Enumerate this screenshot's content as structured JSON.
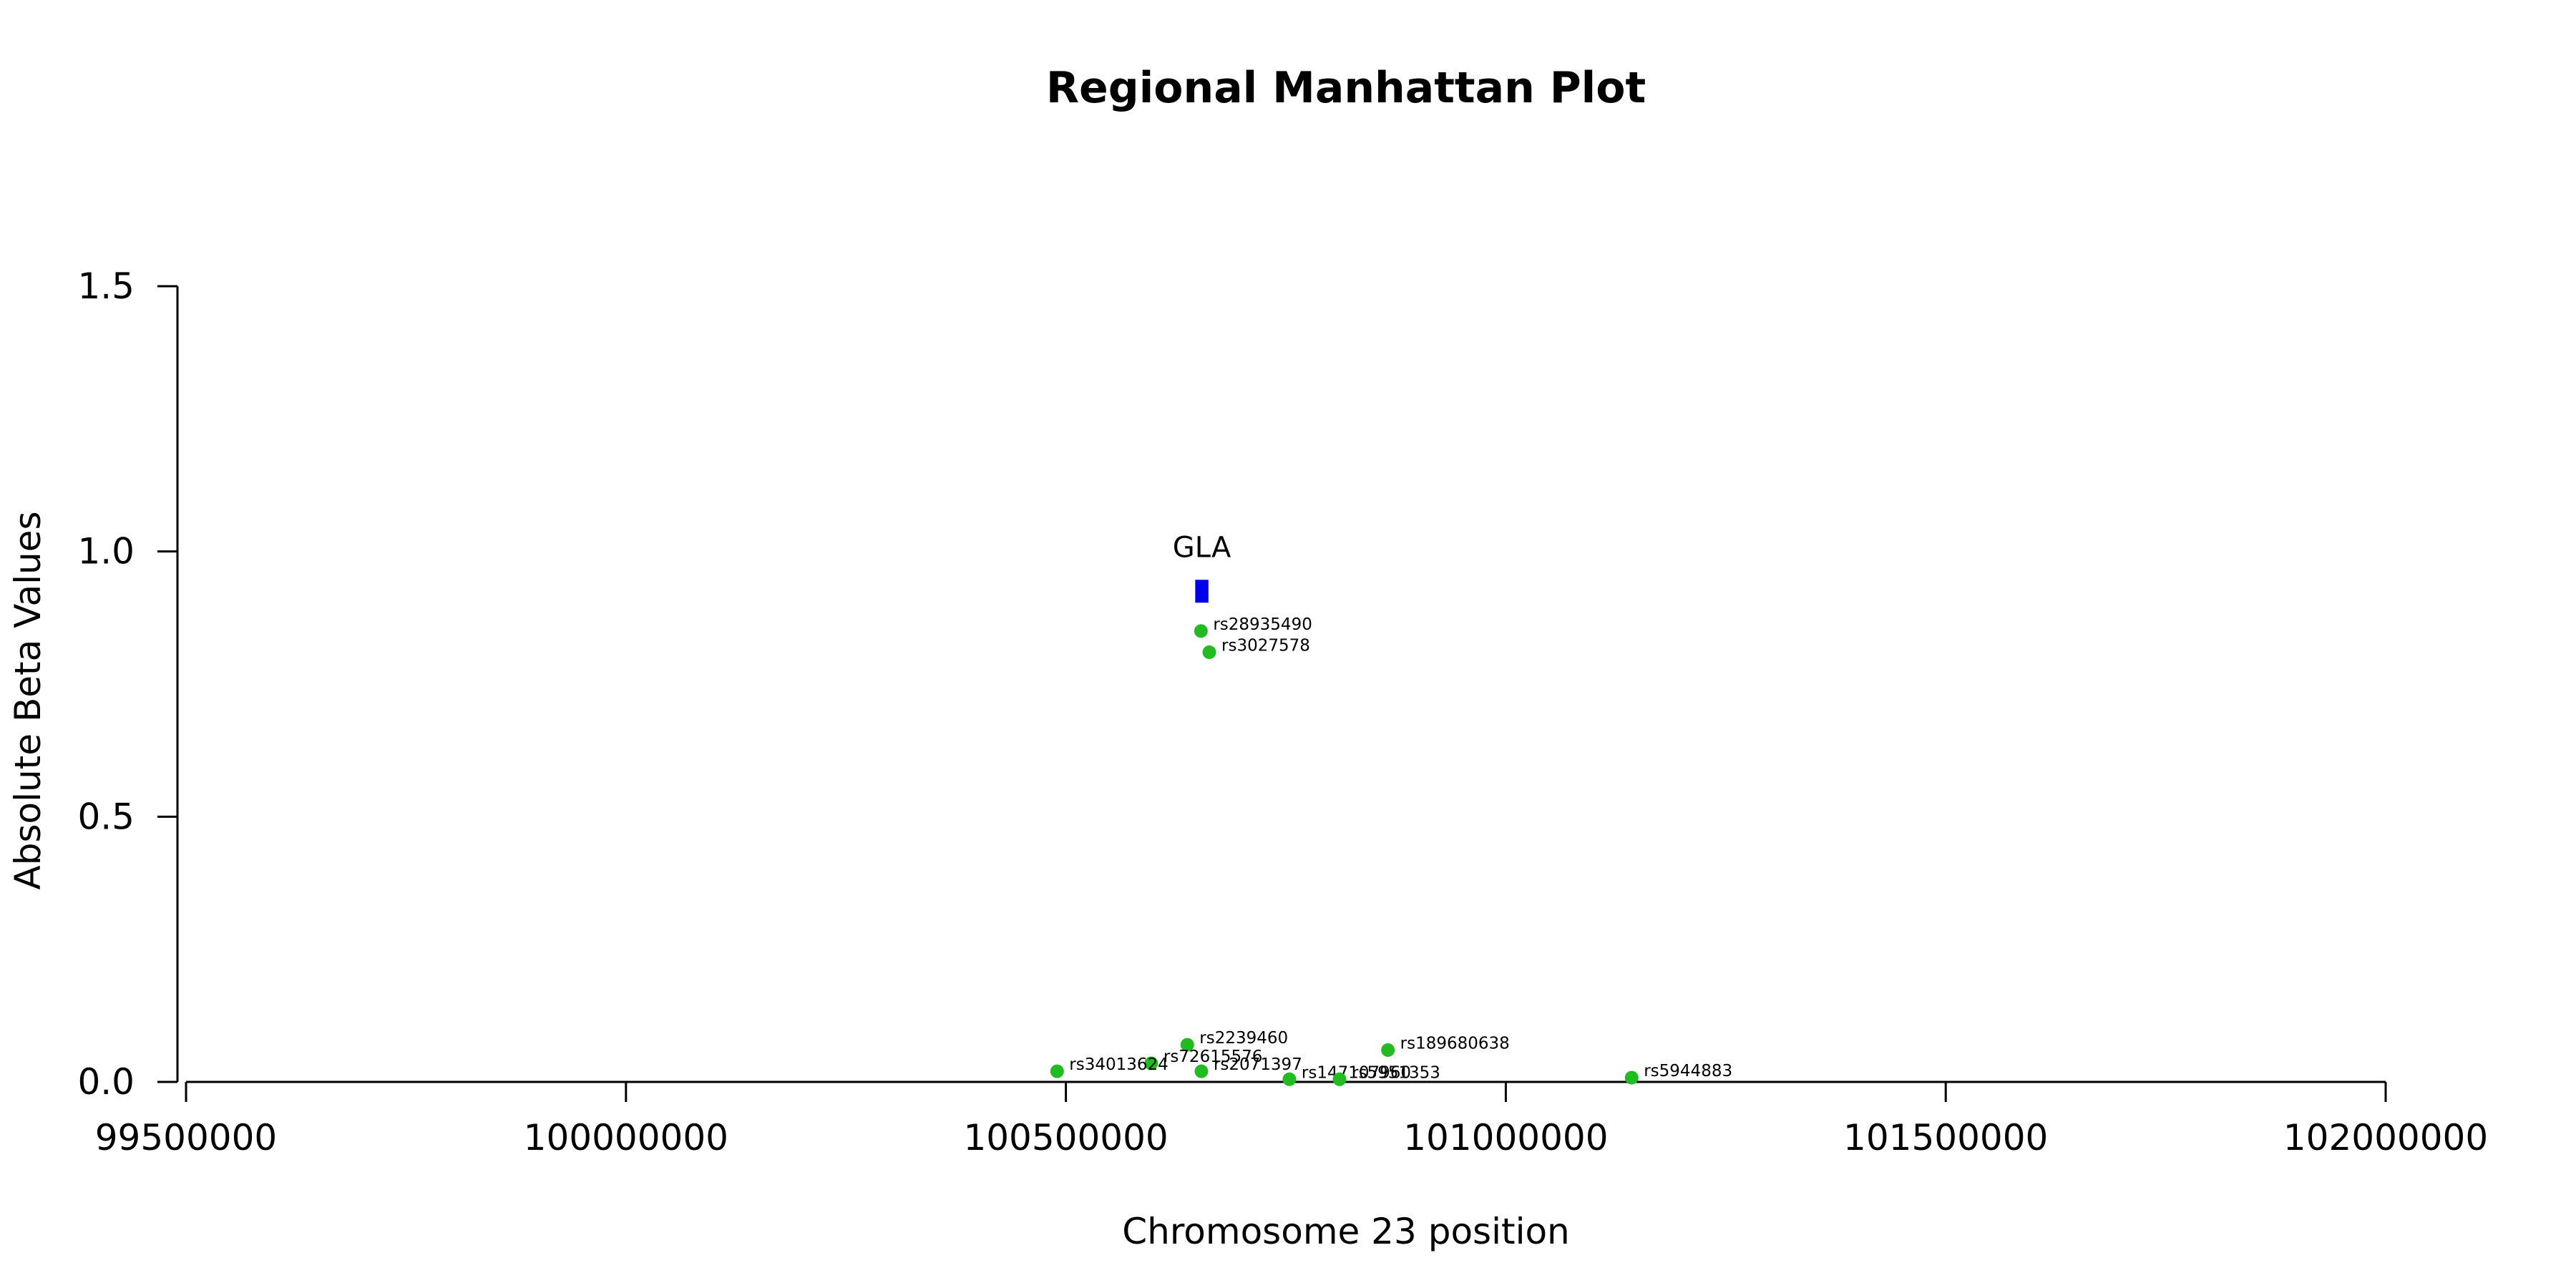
{
  "chart_data": {
    "type": "scatter",
    "title": "Regional Manhattan Plot",
    "xlabel": "Chromosome 23 position",
    "ylabel": "Absolute Beta Values",
    "xlim": [
      99500000,
      102000000
    ],
    "ylim": [
      0,
      1.5
    ],
    "x_ticks": [
      "99500000",
      "100000000",
      "100500000",
      "101000000",
      "101500000",
      "102000000"
    ],
    "y_ticks": [
      "0.0",
      "0.5",
      "1.0",
      "1.5"
    ],
    "grid": false,
    "point_color": "#22bb22",
    "points": [
      {
        "label": "rs28935490",
        "x": 100653500,
        "y": 0.85
      },
      {
        "label": "rs3027578",
        "x": 100663000,
        "y": 0.81
      },
      {
        "label": "rs2239460",
        "x": 100638000,
        "y": 0.07
      },
      {
        "label": "rs72615576",
        "x": 100597000,
        "y": 0.035
      },
      {
        "label": "rs34013624",
        "x": 100490000,
        "y": 0.02
      },
      {
        "label": "rs2071397",
        "x": 100654000,
        "y": 0.02
      },
      {
        "label": "rs147107960",
        "x": 100754000,
        "y": 0.005
      },
      {
        "label": "rs5951353",
        "x": 100811000,
        "y": 0.005
      },
      {
        "label": "rs189680638",
        "x": 100866000,
        "y": 0.06
      },
      {
        "label": "rs5944883",
        "x": 101143000,
        "y": 0.008
      }
    ],
    "genes": [
      {
        "name": "GLA",
        "start": 100647000,
        "end": 100662000,
        "y": 0.925,
        "color": "#0000ee"
      }
    ]
  }
}
